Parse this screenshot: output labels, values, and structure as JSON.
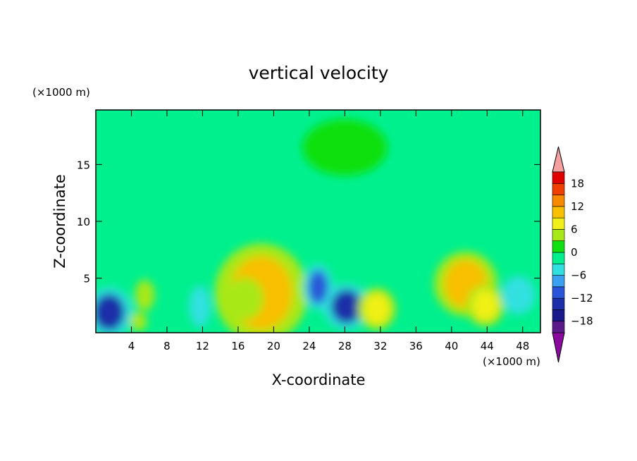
{
  "chart_data": {
    "type": "heatmap",
    "title": "vertical velocity",
    "xlabel": "X-coordinate",
    "ylabel": "Z-coordinate",
    "x_unit": "(×1000 m)",
    "y_unit": "(×1000 m)",
    "xlim": [
      0,
      50
    ],
    "ylim": [
      0.2,
      19.8
    ],
    "x_ticks": [
      "4",
      "8",
      "12",
      "16",
      "20",
      "24",
      "28",
      "32",
      "36",
      "40",
      "44",
      "48"
    ],
    "y_ticks": [
      "5",
      "10",
      "15"
    ],
    "grid": false,
    "colorbar": {
      "labels": [
        "18",
        "12",
        "6",
        "0",
        "−6",
        "−12",
        "−18"
      ],
      "levels": [
        -21,
        -18,
        -15,
        -12,
        -9,
        -6,
        -3,
        0,
        3,
        6,
        9,
        12,
        15,
        18,
        21
      ],
      "colors": [
        "#5a1a8a",
        "#1a1a8a",
        "#1c2fa8",
        "#2a55d8",
        "#3aa0f0",
        "#30e0e0",
        "#00f08e",
        "#10e010",
        "#a8e818",
        "#f0f018",
        "#f8c000",
        "#f88a00",
        "#f04000",
        "#e00000"
      ],
      "under_color": "#8a0aa0",
      "over_color": "#f4a0a0"
    },
    "features": [
      {
        "x": 1.5,
        "z": 2.0,
        "value": -13
      },
      {
        "x": 5.5,
        "z": 3.5,
        "value": 4
      },
      {
        "x": 4.8,
        "z": 1.2,
        "value": 3
      },
      {
        "x": 11.7,
        "z": 2.5,
        "value": -6
      },
      {
        "x": 18.6,
        "z": 3.7,
        "value": 9
      },
      {
        "x": 16.8,
        "z": 3.2,
        "value": 5
      },
      {
        "x": 25.0,
        "z": 4.2,
        "value": -12
      },
      {
        "x": 28.2,
        "z": 2.5,
        "value": -14
      },
      {
        "x": 31.6,
        "z": 2.3,
        "value": 6
      },
      {
        "x": 41.6,
        "z": 4.5,
        "value": 9
      },
      {
        "x": 43.8,
        "z": 2.6,
        "value": 6
      },
      {
        "x": 47.5,
        "z": 3.5,
        "value": -6
      },
      {
        "x": 28.0,
        "z": 16.5,
        "value": 1
      }
    ]
  }
}
